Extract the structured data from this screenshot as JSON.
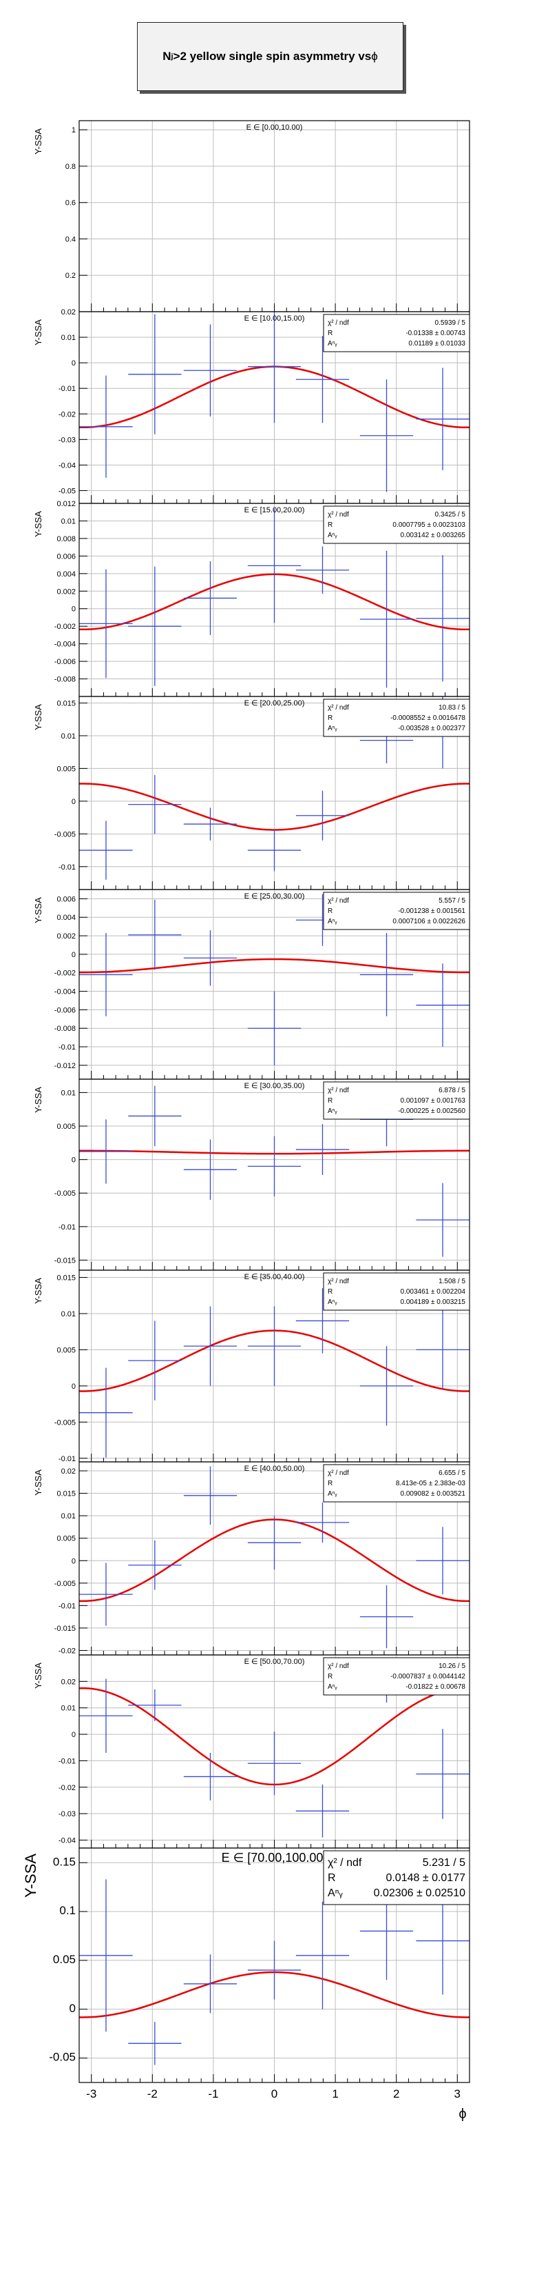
{
  "page": {
    "title_main": "N",
    "title_sub": "j",
    "title_rest": ">2 yellow single spin asymmetry vs ",
    "title_phi": "ϕ"
  },
  "x_axis": {
    "label": "ϕ",
    "range": [
      -3.2,
      3.2
    ],
    "ticks": [
      -3,
      -2,
      -1,
      0,
      1,
      2,
      3
    ]
  },
  "y_label": "Y-SSA",
  "stats_labels": [
    "χ² / ndf",
    "R",
    "Aⁿᵧ"
  ],
  "chart_data": [
    {
      "type": "scatter",
      "title": "E ∈ [0.00,10.00)",
      "ylabel": "Y-SSA",
      "ylim": [
        0,
        1.05
      ],
      "yticks": [
        0.2,
        0.4,
        0.6,
        0.8,
        1
      ],
      "ytick_labels": [
        "0.2",
        "0.4",
        "0.6",
        "0.8",
        "1"
      ],
      "stats": null,
      "points": [],
      "fit": null
    },
    {
      "type": "scatter",
      "title": "E ∈ [10.00,15.00)",
      "ylabel": "Y-SSA",
      "ylim": [
        -0.055,
        0.02
      ],
      "yticks": [
        -0.05,
        -0.04,
        -0.03,
        -0.02,
        -0.01,
        0,
        0.01,
        0.02
      ],
      "ytick_labels": [
        "-0.05",
        "-0.04",
        "-0.03",
        "-0.02",
        "-0.01",
        "0",
        "0.01",
        "0.02"
      ],
      "stats": {
        "chi2ndf": "0.5939 / 5",
        "R": "-0.01338 ± 0.00743",
        "AN": "0.01189 ± 0.01033"
      },
      "points": [
        {
          "x": -2.76,
          "y": -0.025,
          "ey": 0.02
        },
        {
          "x": -1.96,
          "y": -0.0045,
          "ey": 0.0235
        },
        {
          "x": -1.05,
          "y": -0.003,
          "ey": 0.018
        },
        {
          "x": 0.0,
          "y": -0.0015,
          "ey": 0.022
        },
        {
          "x": 0.79,
          "y": -0.0065,
          "ey": 0.017
        },
        {
          "x": 1.84,
          "y": -0.0285,
          "ey": 0.022
        },
        {
          "x": 2.76,
          "y": -0.022,
          "ey": 0.02
        }
      ],
      "fit": {
        "R": -0.01338,
        "AN": 0.01189
      }
    },
    {
      "type": "scatter",
      "title": "E ∈ [15.00,20.00)",
      "ylabel": "Y-SSA",
      "ylim": [
        -0.01,
        0.012
      ],
      "yticks": [
        -0.008,
        -0.006,
        -0.004,
        -0.002,
        0,
        0.002,
        0.004,
        0.006,
        0.008,
        0.01,
        0.012
      ],
      "ytick_labels": [
        "-0.008",
        "-0.006",
        "-0.004",
        "-0.002",
        "0",
        "0.002",
        "0.004",
        "0.006",
        "0.008",
        "0.01",
        "0.012"
      ],
      "stats": {
        "chi2ndf": "0.3425 / 5",
        "R": "0.0007795 ± 0.0023103",
        "AN": "0.003142 ± 0.003265"
      },
      "points": [
        {
          "x": -2.76,
          "y": -0.0017,
          "ey": 0.0062
        },
        {
          "x": -1.96,
          "y": -0.002,
          "ey": 0.0068
        },
        {
          "x": -1.05,
          "y": 0.0012,
          "ey": 0.0042
        },
        {
          "x": 0.0,
          "y": 0.0049,
          "ey": 0.0065
        },
        {
          "x": 0.79,
          "y": 0.0044,
          "ey": 0.0027
        },
        {
          "x": 1.84,
          "y": -0.0012,
          "ey": 0.0078
        },
        {
          "x": 2.76,
          "y": -0.0011,
          "ey": 0.0072
        }
      ],
      "fit": {
        "R": 0.0007795,
        "AN": 0.003142
      }
    },
    {
      "type": "scatter",
      "title": "E ∈ [20.00,25.00)",
      "ylabel": "Y-SSA",
      "ylim": [
        -0.0135,
        0.016
      ],
      "yticks": [
        -0.01,
        -0.005,
        0,
        0.005,
        0.01,
        0.015
      ],
      "ytick_labels": [
        "-0.01",
        "-0.005",
        "0",
        "0.005",
        "0.01",
        "0.015"
      ],
      "stats": {
        "chi2ndf": "10.83 / 5",
        "R": "-0.0008552 ± 0.0016478",
        "AN": "-0.003528 ± 0.002377"
      },
      "points": [
        {
          "x": -2.76,
          "y": -0.0075,
          "ey": 0.0045
        },
        {
          "x": -1.96,
          "y": -0.0005,
          "ey": 0.0045
        },
        {
          "x": -1.05,
          "y": -0.0035,
          "ey": 0.0025
        },
        {
          "x": 0.0,
          "y": -0.0075,
          "ey": 0.0032
        },
        {
          "x": 0.79,
          "y": -0.0022,
          "ey": 0.0038
        },
        {
          "x": 1.84,
          "y": 0.0093,
          "ey": 0.0035
        },
        {
          "x": 2.76,
          "y": 0.011,
          "ey": 0.006
        }
      ],
      "fit": {
        "R": -0.0008552,
        "AN": -0.003528
      }
    },
    {
      "type": "scatter",
      "title": "E ∈ [25.00,30.00)",
      "ylabel": "Y-SSA",
      "ylim": [
        -0.0135,
        0.007
      ],
      "yticks": [
        -0.012,
        -0.01,
        -0.008,
        -0.006,
        -0.004,
        -0.002,
        0,
        0.002,
        0.004,
        0.006
      ],
      "ytick_labels": [
        "-0.012",
        "-0.01",
        "-0.008",
        "-0.006",
        "-0.004",
        "-0.002",
        "0",
        "0.002",
        "0.004",
        "0.006"
      ],
      "stats": {
        "chi2ndf": "5.557 / 5",
        "R": "-0.001238 ± 0.001561",
        "AN": "0.0007106 ± 0.0022626"
      },
      "points": [
        {
          "x": -2.76,
          "y": -0.0022,
          "ey": 0.0045
        },
        {
          "x": -1.96,
          "y": 0.0021,
          "ey": 0.0038
        },
        {
          "x": -1.05,
          "y": -0.0004,
          "ey": 0.003
        },
        {
          "x": 0.0,
          "y": -0.008,
          "ey": 0.004
        },
        {
          "x": 0.79,
          "y": 0.0037,
          "ey": 0.0028
        },
        {
          "x": 1.84,
          "y": -0.0022,
          "ey": 0.0045
        },
        {
          "x": 2.76,
          "y": -0.0055,
          "ey": 0.0045
        }
      ],
      "fit": {
        "R": -0.001238,
        "AN": 0.0007106
      }
    },
    {
      "type": "scatter",
      "title": "E ∈ [30.00,35.00)",
      "ylabel": "Y-SSA",
      "ylim": [
        -0.0165,
        0.012
      ],
      "yticks": [
        -0.015,
        -0.01,
        -0.005,
        0,
        0.005,
        0.01
      ],
      "ytick_labels": [
        "-0.015",
        "-0.01",
        "-0.005",
        "0",
        "0.005",
        "0.01"
      ],
      "stats": {
        "chi2ndf": "6.878 / 5",
        "R": "0.001097 ± 0.001763",
        "AN": "-0.000225 ± 0.002560"
      },
      "points": [
        {
          "x": -2.76,
          "y": 0.0012,
          "ey": 0.0048
        },
        {
          "x": -1.96,
          "y": 0.0065,
          "ey": 0.0045
        },
        {
          "x": -1.05,
          "y": -0.0015,
          "ey": 0.0045
        },
        {
          "x": 0.0,
          "y": -0.001,
          "ey": 0.0045
        },
        {
          "x": 0.79,
          "y": 0.0015,
          "ey": 0.0038
        },
        {
          "x": 1.84,
          "y": 0.006,
          "ey": 0.004
        },
        {
          "x": 2.76,
          "y": -0.009,
          "ey": 0.0055
        }
      ],
      "fit": {
        "R": 0.001097,
        "AN": -0.000225
      }
    },
    {
      "type": "scatter",
      "title": "E ∈ [35.00,40.00)",
      "ylabel": "Y-SSA",
      "ylim": [
        -0.0105,
        0.016
      ],
      "yticks": [
        -0.01,
        -0.005,
        0,
        0.005,
        0.01,
        0.015
      ],
      "ytick_labels": [
        "-0.01",
        "-0.005",
        "0",
        "0.005",
        "0.01",
        "0.015"
      ],
      "stats": {
        "chi2ndf": "1.508 / 5",
        "R": "0.003461 ± 0.002204",
        "AN": "0.004189 ± 0.003215"
      },
      "points": [
        {
          "x": -2.76,
          "y": -0.0037,
          "ey": 0.0062
        },
        {
          "x": -1.96,
          "y": 0.0035,
          "ey": 0.0055
        },
        {
          "x": -1.05,
          "y": 0.0055,
          "ey": 0.0055
        },
        {
          "x": 0.0,
          "y": 0.0055,
          "ey": 0.0055
        },
        {
          "x": 0.79,
          "y": 0.009,
          "ey": 0.0045
        },
        {
          "x": 1.84,
          "y": 0.0,
          "ey": 0.0055
        },
        {
          "x": 2.76,
          "y": 0.005,
          "ey": 0.0055
        }
      ],
      "fit": {
        "R": 0.003461,
        "AN": 0.004189
      }
    },
    {
      "type": "scatter",
      "title": "E ∈ [40.00,50.00)",
      "ylabel": "Y-SSA",
      "ylim": [
        -0.021,
        0.022
      ],
      "yticks": [
        -0.02,
        -0.015,
        -0.01,
        -0.005,
        0,
        0.005,
        0.01,
        0.015,
        0.02
      ],
      "ytick_labels": [
        "-0.02",
        "-0.015",
        "-0.01",
        "-0.005",
        "0",
        "0.005",
        "0.01",
        "0.015",
        "0.02"
      ],
      "stats": {
        "chi2ndf": "6.655 / 5",
        "R": "8.413e-05 ± 2.383e-03",
        "AN": "0.009082 ± 0.003521"
      },
      "points": [
        {
          "x": -2.76,
          "y": -0.0075,
          "ey": 0.007
        },
        {
          "x": -1.96,
          "y": -0.001,
          "ey": 0.0055
        },
        {
          "x": -1.05,
          "y": 0.0145,
          "ey": 0.0065
        },
        {
          "x": 0.0,
          "y": 0.004,
          "ey": 0.006
        },
        {
          "x": 0.79,
          "y": 0.0085,
          "ey": 0.0045
        },
        {
          "x": 1.84,
          "y": -0.0125,
          "ey": 0.007
        },
        {
          "x": 2.76,
          "y": 0.0,
          "ey": 0.0075
        }
      ],
      "fit": {
        "R": 8.413e-05,
        "AN": 0.009082
      }
    },
    {
      "type": "scatter",
      "title": "E ∈ [50.00,70.00)",
      "ylabel": "Y-SSA",
      "ylim": [
        -0.043,
        0.03
      ],
      "yticks": [
        -0.04,
        -0.03,
        -0.02,
        -0.01,
        0,
        0.01,
        0.02
      ],
      "ytick_labels": [
        "-0.04",
        "-0.03",
        "-0.02",
        "-0.01",
        "0",
        "0.01",
        "0.02"
      ],
      "stats": {
        "chi2ndf": "10.26 / 5",
        "R": "-0.0007837 ± 0.0044142",
        "AN": "-0.01822 ± 0.00678"
      },
      "points": [
        {
          "x": -2.76,
          "y": 0.007,
          "ey": 0.014
        },
        {
          "x": -1.96,
          "y": 0.011,
          "ey": 0.006
        },
        {
          "x": -1.05,
          "y": -0.016,
          "ey": 0.009
        },
        {
          "x": 0.0,
          "y": -0.011,
          "ey": 0.012
        },
        {
          "x": 0.79,
          "y": -0.029,
          "ey": 0.01
        },
        {
          "x": 1.84,
          "y": 0.02,
          "ey": 0.008
        },
        {
          "x": 2.76,
          "y": -0.015,
          "ey": 0.017
        }
      ],
      "fit": {
        "R": -0.0007837,
        "AN": -0.01822
      }
    },
    {
      "type": "scatter",
      "title": "E ∈ [70.00,100.00)",
      "ylabel": "Y-SSA",
      "ylim": [
        -0.075,
        0.165
      ],
      "yticks": [
        -0.05,
        0,
        0.05,
        0.1,
        0.15
      ],
      "ytick_labels": [
        "-0.05",
        "0",
        "0.05",
        "0.1",
        "0.15"
      ],
      "stats": {
        "chi2ndf": "5.231 / 5",
        "R": "0.0148 ± 0.0177",
        "AN": "0.02306 ± 0.02510"
      },
      "points": [
        {
          "x": -2.76,
          "y": 0.055,
          "ey": 0.078
        },
        {
          "x": -1.96,
          "y": -0.035,
          "ey": 0.022
        },
        {
          "x": -1.05,
          "y": 0.026,
          "ey": 0.03
        },
        {
          "x": 0.0,
          "y": 0.04,
          "ey": 0.03
        },
        {
          "x": 0.79,
          "y": 0.055,
          "ey": 0.055
        },
        {
          "x": 1.84,
          "y": 0.08,
          "ey": 0.05
        },
        {
          "x": 2.76,
          "y": 0.07,
          "ey": 0.055
        }
      ],
      "fit": {
        "R": 0.0148,
        "AN": 0.02306
      }
    }
  ]
}
